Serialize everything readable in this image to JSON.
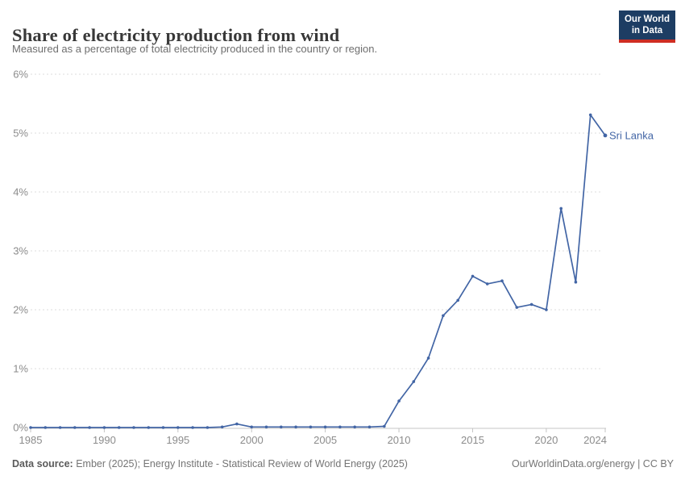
{
  "header": {
    "title": "Share of electricity production from wind",
    "subtitle": "Measured as a percentage of total electricity produced in the country or region.",
    "logo": {
      "line1": "Our World",
      "line2": "in Data",
      "bg_color": "#1d3d63",
      "bar_color": "#cf2e23"
    }
  },
  "chart_data": {
    "type": "line",
    "title": "Share of electricity production from wind",
    "xlabel": "",
    "ylabel": "",
    "ylim": [
      0,
      6
    ],
    "xlim": [
      1985,
      2024
    ],
    "grid": true,
    "y_ticks": [
      0,
      1,
      2,
      3,
      4,
      5,
      6
    ],
    "y_tick_labels": [
      "0%",
      "1%",
      "2%",
      "3%",
      "4%",
      "5%",
      "6%"
    ],
    "x_ticks": [
      1985,
      1990,
      1995,
      2000,
      2005,
      2010,
      2015,
      2020,
      2024
    ],
    "legend_position": "end-of-line-label",
    "series": [
      {
        "name": "Sri Lanka",
        "color": "#4265a5",
        "x": [
          1985,
          1986,
          1987,
          1988,
          1989,
          1990,
          1991,
          1992,
          1993,
          1994,
          1995,
          1996,
          1997,
          1998,
          1999,
          2000,
          2001,
          2002,
          2003,
          2004,
          2005,
          2006,
          2007,
          2008,
          2009,
          2010,
          2011,
          2012,
          2013,
          2014,
          2015,
          2016,
          2017,
          2018,
          2019,
          2020,
          2021,
          2022,
          2023,
          2024
        ],
        "values": [
          0,
          0,
          0,
          0,
          0,
          0,
          0,
          0,
          0,
          0,
          0,
          0,
          0,
          0.01,
          0.06,
          0.01,
          0.01,
          0.01,
          0.01,
          0.01,
          0.01,
          0.01,
          0.01,
          0.01,
          0.02,
          0.45,
          0.78,
          1.18,
          1.9,
          2.16,
          2.57,
          2.44,
          2.49,
          2.04,
          2.09,
          2.0,
          3.72,
          2.47,
          5.31,
          4.96
        ]
      }
    ],
    "colors": {
      "gridline": "#dcdcdc",
      "axis_line": "#c4c4c4",
      "tick_label": "#8c8c8c"
    }
  },
  "footer": {
    "datasource_label": "Data source:",
    "datasource_text": "Ember (2025); Energy Institute - Statistical Review of World Energy (2025)",
    "link_text": "OurWorldinData.org/energy | CC BY"
  }
}
